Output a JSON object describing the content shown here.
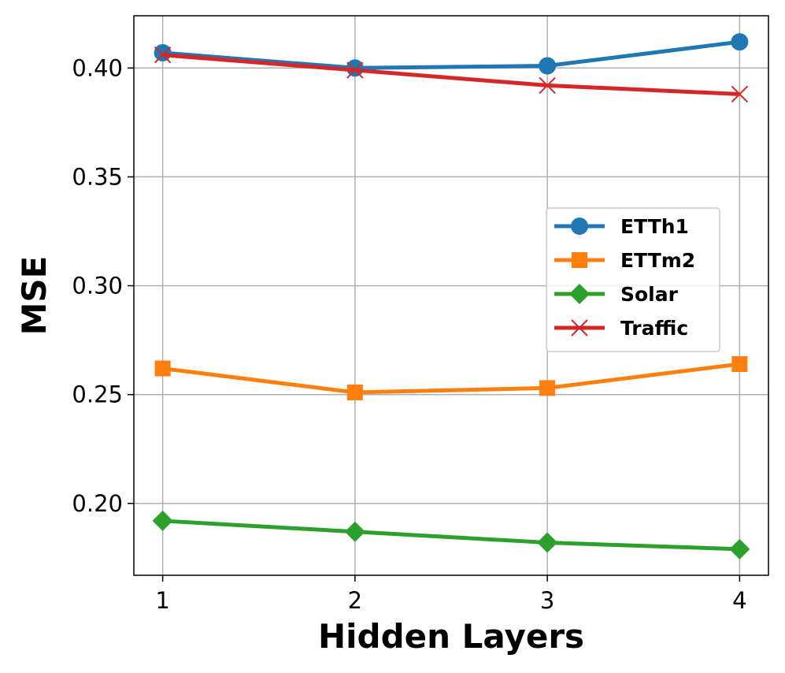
{
  "chart_data": {
    "type": "line",
    "xlabel": "Hidden Layers",
    "ylabel": "MSE",
    "x": [
      1,
      2,
      3,
      4
    ],
    "x_ticks": [
      "1",
      "2",
      "3",
      "4"
    ],
    "xlim": [
      0.85,
      4.15
    ],
    "ylim": [
      0.167,
      0.424
    ],
    "y_ticks": [
      "0.20",
      "0.25",
      "0.30",
      "0.35",
      "0.40"
    ],
    "grid": true,
    "legend_position": "center-right",
    "series": [
      {
        "name": "ETTh1",
        "color": "#1f77b4",
        "marker": "circle",
        "values": [
          0.407,
          0.4,
          0.401,
          0.412
        ]
      },
      {
        "name": "ETTm2",
        "color": "#ff7f0e",
        "marker": "square",
        "values": [
          0.262,
          0.251,
          0.253,
          0.264
        ]
      },
      {
        "name": "Solar",
        "color": "#2ca02c",
        "marker": "diamond",
        "values": [
          0.192,
          0.187,
          0.182,
          0.179
        ]
      },
      {
        "name": "Traffic",
        "color": "#d62728",
        "marker": "x",
        "values": [
          0.406,
          0.399,
          0.392,
          0.388
        ]
      }
    ]
  }
}
